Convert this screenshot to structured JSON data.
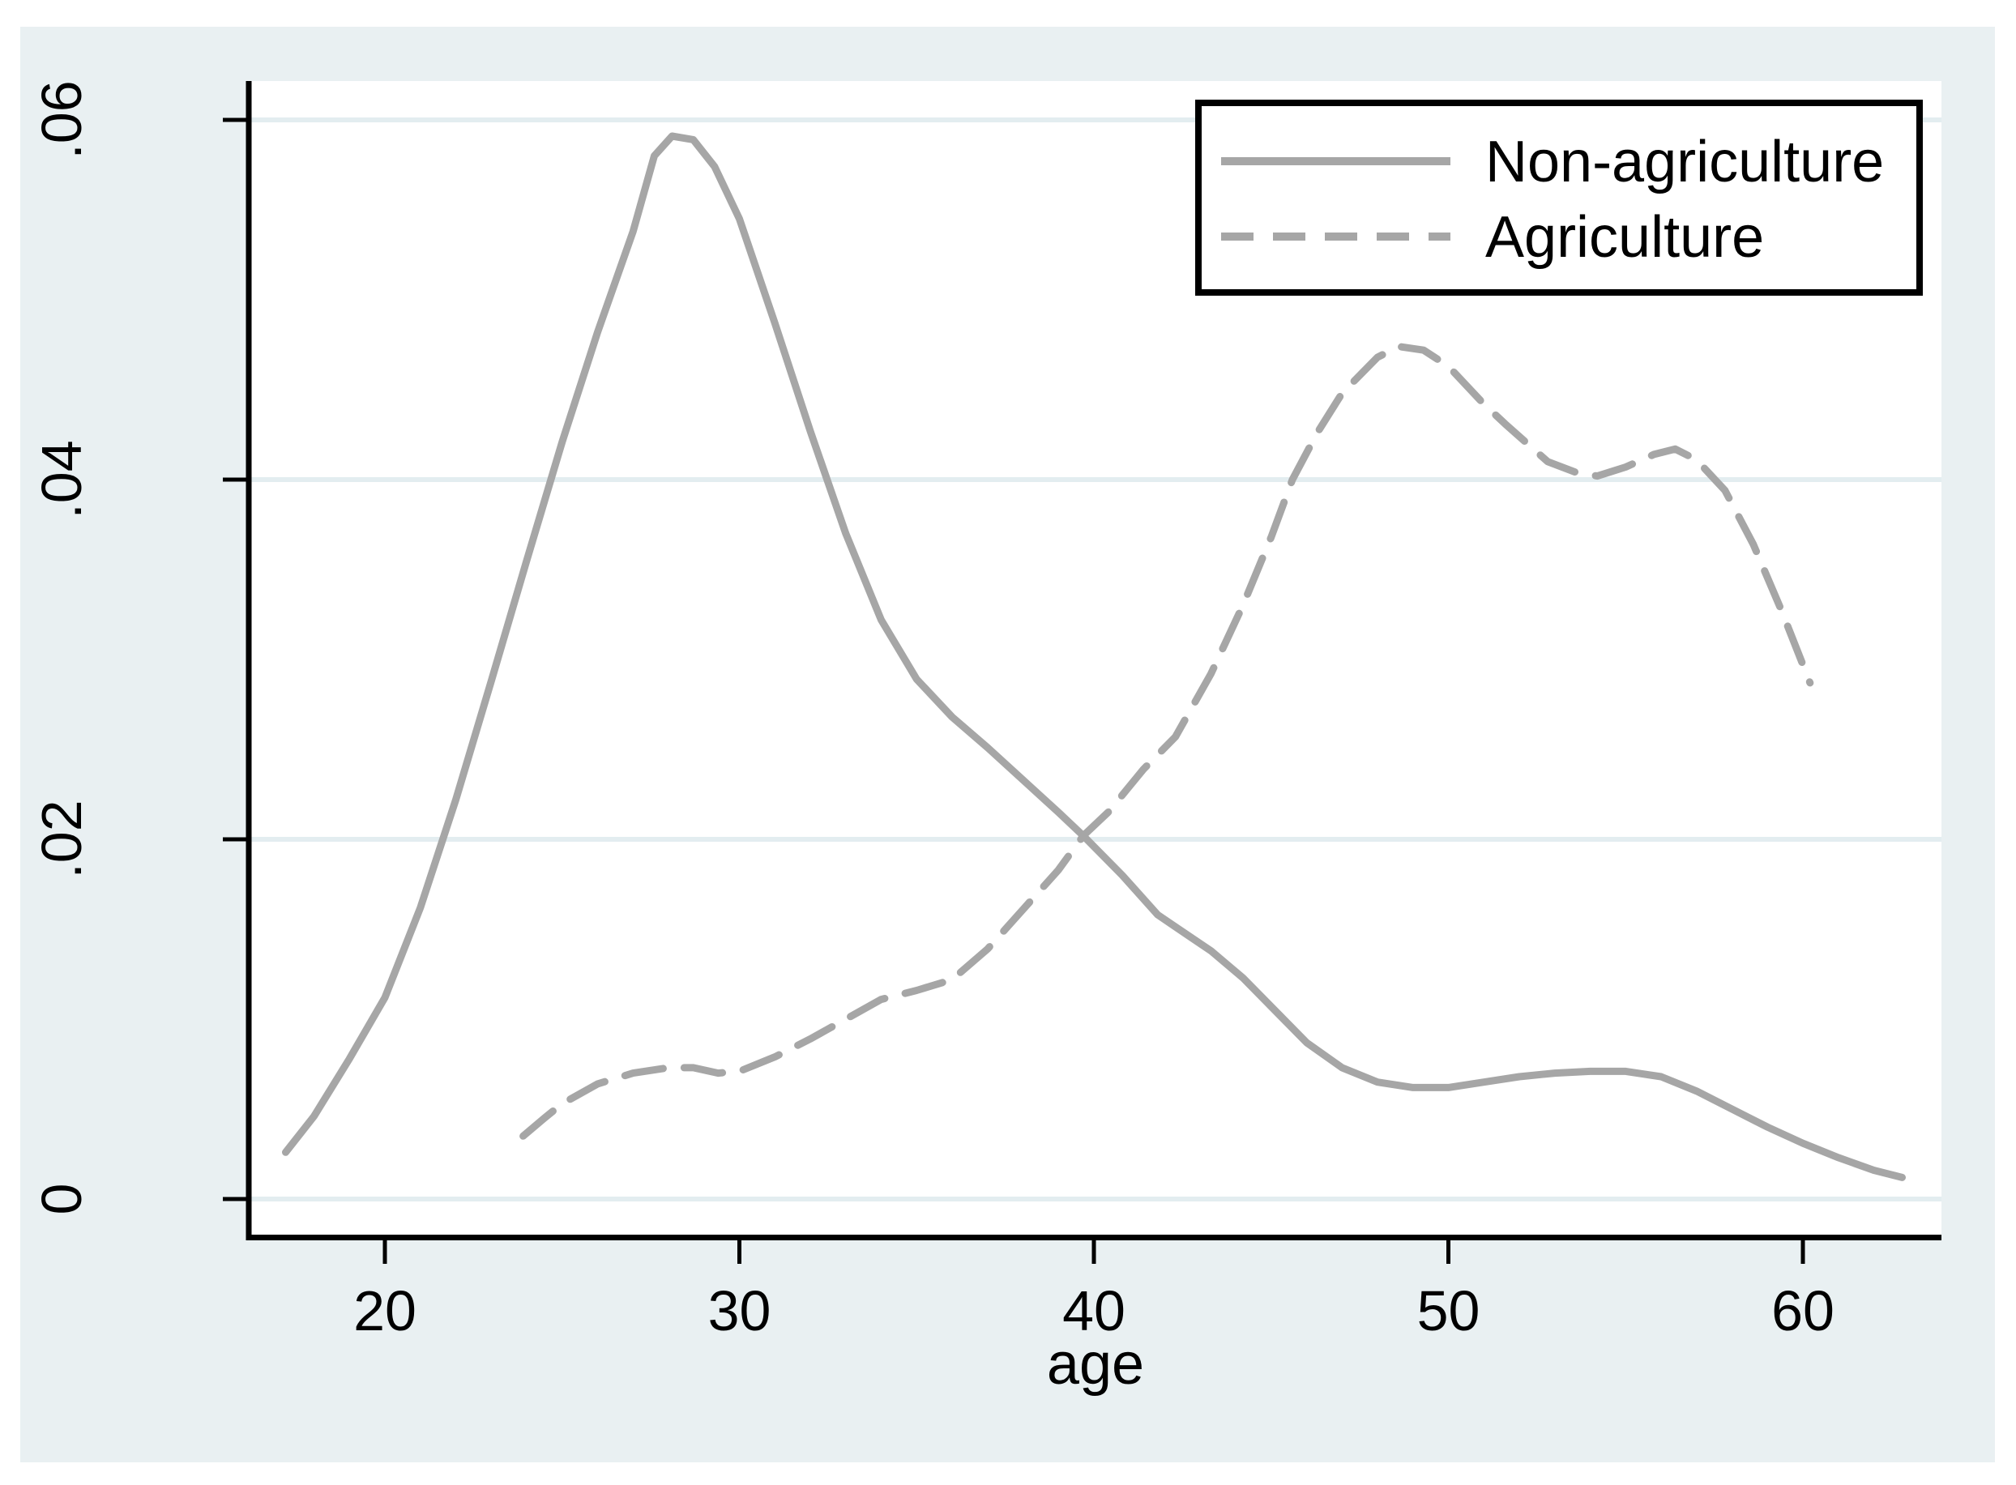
{
  "figure": {
    "page_bg": "#ffffff",
    "canvas_bg": "#e9f0f2",
    "plot_bg": "#ffffff",
    "grid_color": "#e3edf0",
    "axis_color": "#000000",
    "line_gray": "#a6a6a6",
    "legend_border": "#000000",
    "legend_bg": "#ffffff"
  },
  "chart_data": {
    "type": "line",
    "title": "",
    "xlabel": "age",
    "ylabel": "",
    "grid": true,
    "legend_position": "top-right",
    "xlim": [
      16.2,
      63.9
    ],
    "ylim": [
      0,
      0.06
    ],
    "x_ticks": [
      {
        "label": "20",
        "value": 20
      },
      {
        "label": "30",
        "value": 30
      },
      {
        "label": "40",
        "value": 40
      },
      {
        "label": "50",
        "value": 50
      },
      {
        "label": "60",
        "value": 60
      }
    ],
    "y_ticks": [
      {
        "label": "0",
        "value": 0
      },
      {
        "label": ".02",
        "value": 0.02
      },
      {
        "label": ".04",
        "value": 0.04
      },
      {
        "label": ".06",
        "value": 0.06
      }
    ],
    "series": [
      {
        "name": "Non-agriculture",
        "style": "solid",
        "color": "#a6a6a6",
        "points": [
          [
            17.2,
            0.0026
          ],
          [
            18,
            0.0046
          ],
          [
            19,
            0.0078
          ],
          [
            20,
            0.0112
          ],
          [
            21,
            0.0162
          ],
          [
            22,
            0.0222
          ],
          [
            23,
            0.0288
          ],
          [
            24,
            0.0355
          ],
          [
            25,
            0.0421
          ],
          [
            26,
            0.0482
          ],
          [
            27,
            0.0538
          ],
          [
            27.6,
            0.058
          ],
          [
            28.1,
            0.0591
          ],
          [
            28.7,
            0.0589
          ],
          [
            29.3,
            0.0574
          ],
          [
            30,
            0.0545
          ],
          [
            31,
            0.0487
          ],
          [
            32,
            0.0427
          ],
          [
            33,
            0.037
          ],
          [
            34,
            0.0322
          ],
          [
            35,
            0.0289
          ],
          [
            36,
            0.0268
          ],
          [
            37,
            0.0251
          ],
          [
            38,
            0.0233
          ],
          [
            39,
            0.0215
          ],
          [
            39.7,
            0.0202
          ],
          [
            40.8,
            0.018
          ],
          [
            41.8,
            0.0158
          ],
          [
            42.7,
            0.0146
          ],
          [
            43.3,
            0.0138
          ],
          [
            44.2,
            0.0123
          ],
          [
            45.2,
            0.0103
          ],
          [
            46,
            0.0087
          ],
          [
            47,
            0.0073
          ],
          [
            48,
            0.0065
          ],
          [
            49,
            0.0062
          ],
          [
            50,
            0.0062
          ],
          [
            51,
            0.0065
          ],
          [
            52,
            0.0068
          ],
          [
            53,
            0.007
          ],
          [
            54,
            0.0071
          ],
          [
            55,
            0.0071
          ],
          [
            56,
            0.0068
          ],
          [
            57,
            0.006
          ],
          [
            58,
            0.005
          ],
          [
            59,
            0.004
          ],
          [
            60,
            0.0031
          ],
          [
            61,
            0.0023
          ],
          [
            62,
            0.0016
          ],
          [
            62.8,
            0.0012
          ]
        ]
      },
      {
        "name": "Agriculture",
        "style": "dashed",
        "color": "#a6a6a6",
        "points": [
          [
            23.9,
            0.0035
          ],
          [
            24.5,
            0.0045
          ],
          [
            25,
            0.0053
          ],
          [
            26,
            0.0064
          ],
          [
            27,
            0.007
          ],
          [
            28,
            0.0073
          ],
          [
            28.7,
            0.0073
          ],
          [
            29.4,
            0.007
          ],
          [
            30,
            0.0071
          ],
          [
            31,
            0.0079
          ],
          [
            32,
            0.0089
          ],
          [
            33,
            0.01
          ],
          [
            34,
            0.0111
          ],
          [
            35,
            0.0116
          ],
          [
            36,
            0.0122
          ],
          [
            37,
            0.0139
          ],
          [
            38,
            0.0161
          ],
          [
            39,
            0.0183
          ],
          [
            39.7,
            0.0202
          ],
          [
            40.4,
            0.0215
          ],
          [
            41.4,
            0.0239
          ],
          [
            42.3,
            0.0257
          ],
          [
            43.3,
            0.0292
          ],
          [
            44.2,
            0.033
          ],
          [
            45,
            0.0368
          ],
          [
            45.6,
            0.04
          ],
          [
            46.3,
            0.0426
          ],
          [
            47,
            0.0448
          ],
          [
            48,
            0.0468
          ],
          [
            48.6,
            0.0474
          ],
          [
            49.3,
            0.0472
          ],
          [
            50,
            0.0463
          ],
          [
            51,
            0.0442
          ],
          [
            51.6,
            0.0431
          ],
          [
            52.8,
            0.041
          ],
          [
            53.6,
            0.0404
          ],
          [
            54.2,
            0.0402
          ],
          [
            55,
            0.0407
          ],
          [
            55.8,
            0.0414
          ],
          [
            56.4,
            0.0417
          ],
          [
            57,
            0.0411
          ],
          [
            57.8,
            0.0394
          ],
          [
            58.6,
            0.0364
          ],
          [
            59.4,
            0.0327
          ],
          [
            60.2,
            0.0287
          ]
        ]
      }
    ]
  },
  "legend": {
    "item1": "Non-agriculture",
    "item2": "Agriculture"
  }
}
